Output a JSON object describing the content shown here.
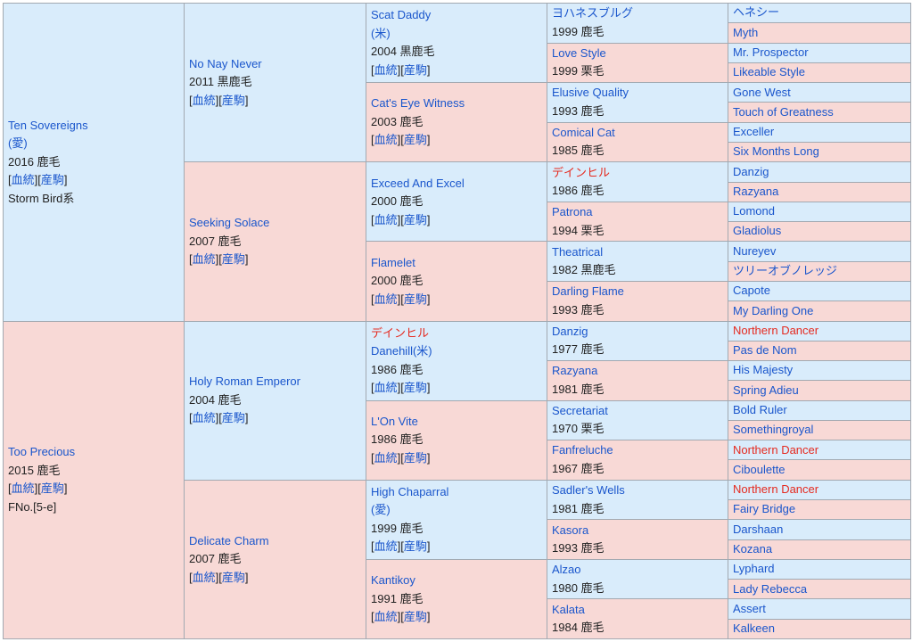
{
  "gen1": [
    {
      "lines": [
        {
          "t": "Ten Sovereigns",
          "c": "blue"
        },
        {
          "t": "(愛)",
          "c": "blue"
        },
        {
          "t": "2016 鹿毛",
          "c": "txt"
        },
        {
          "links": true
        },
        {
          "t": "Storm Bird系",
          "c": "txt"
        }
      ]
    },
    {
      "lines": [
        {
          "t": "Too Precious",
          "c": "blue"
        },
        {
          "t": "2015 鹿毛",
          "c": "txt"
        },
        {
          "links": true
        },
        {
          "t": "FNo.[5-e]",
          "c": "txt"
        }
      ]
    }
  ],
  "gen2": [
    {
      "lines": [
        {
          "t": "No Nay Never",
          "c": "blue"
        },
        {
          "t": "2011 黒鹿毛",
          "c": "txt"
        },
        {
          "links": true
        }
      ]
    },
    {
      "lines": [
        {
          "t": "Seeking Solace",
          "c": "blue"
        },
        {
          "t": "2007 鹿毛",
          "c": "txt"
        },
        {
          "links": true
        }
      ]
    },
    {
      "lines": [
        {
          "t": "Holy Roman Emperor",
          "c": "blue"
        },
        {
          "t": "2004 鹿毛",
          "c": "txt"
        },
        {
          "links": true
        }
      ]
    },
    {
      "lines": [
        {
          "t": "Delicate Charm",
          "c": "blue"
        },
        {
          "t": "2007 鹿毛",
          "c": "txt"
        },
        {
          "links": true
        }
      ]
    }
  ],
  "gen3": [
    {
      "lines": [
        {
          "t": "Scat Daddy",
          "c": "blue"
        },
        {
          "t": "(米)",
          "c": "blue"
        },
        {
          "t": "2004 黒鹿毛",
          "c": "txt"
        },
        {
          "links": true
        }
      ]
    },
    {
      "lines": [
        {
          "t": "Cat's Eye Witness",
          "c": "blue"
        },
        {
          "t": "2003 鹿毛",
          "c": "txt"
        },
        {
          "links": true
        }
      ]
    },
    {
      "lines": [
        {
          "t": "Exceed And Excel",
          "c": "blue"
        },
        {
          "t": "2000 鹿毛",
          "c": "txt"
        },
        {
          "links": true
        }
      ]
    },
    {
      "lines": [
        {
          "t": "Flamelet",
          "c": "blue"
        },
        {
          "t": "2000 鹿毛",
          "c": "txt"
        },
        {
          "links": true
        }
      ]
    },
    {
      "lines": [
        {
          "t": "デインヒル",
          "c": "red"
        },
        {
          "t": "Danehill(米)",
          "c": "blue"
        },
        {
          "t": "1986 鹿毛",
          "c": "txt"
        },
        {
          "links": true
        }
      ]
    },
    {
      "lines": [
        {
          "t": "L'On Vite",
          "c": "blue"
        },
        {
          "t": "1986 鹿毛",
          "c": "txt"
        },
        {
          "links": true
        }
      ]
    },
    {
      "lines": [
        {
          "t": "High Chaparral",
          "c": "blue"
        },
        {
          "t": "(愛)",
          "c": "blue"
        },
        {
          "t": "1999 鹿毛",
          "c": "txt"
        },
        {
          "links": true
        }
      ]
    },
    {
      "lines": [
        {
          "t": "Kantikoy",
          "c": "blue"
        },
        {
          "t": "1991 鹿毛",
          "c": "txt"
        },
        {
          "links": true
        }
      ]
    }
  ],
  "gen4": [
    {
      "lines": [
        {
          "t": "ヨハネスブルグ",
          "c": "blue"
        },
        {
          "t": "1999 鹿毛",
          "c": "txt"
        }
      ]
    },
    {
      "lines": [
        {
          "t": "Love Style",
          "c": "blue"
        },
        {
          "t": "1999 栗毛",
          "c": "txt"
        }
      ]
    },
    {
      "lines": [
        {
          "t": "Elusive Quality",
          "c": "blue"
        },
        {
          "t": "1993 鹿毛",
          "c": "txt"
        }
      ]
    },
    {
      "lines": [
        {
          "t": "Comical Cat",
          "c": "blue"
        },
        {
          "t": "1985 鹿毛",
          "c": "txt"
        }
      ]
    },
    {
      "lines": [
        {
          "t": "デインヒル",
          "c": "red"
        },
        {
          "t": "1986 鹿毛",
          "c": "txt"
        }
      ]
    },
    {
      "lines": [
        {
          "t": "Patrona",
          "c": "blue"
        },
        {
          "t": "1994 栗毛",
          "c": "txt"
        }
      ]
    },
    {
      "lines": [
        {
          "t": "Theatrical",
          "c": "blue"
        },
        {
          "t": "1982 黒鹿毛",
          "c": "txt"
        }
      ]
    },
    {
      "lines": [
        {
          "t": "Darling Flame",
          "c": "blue"
        },
        {
          "t": "1993 鹿毛",
          "c": "txt"
        }
      ]
    },
    {
      "lines": [
        {
          "t": "Danzig",
          "c": "blue"
        },
        {
          "t": "1977 鹿毛",
          "c": "txt"
        }
      ]
    },
    {
      "lines": [
        {
          "t": "Razyana",
          "c": "blue"
        },
        {
          "t": "1981 鹿毛",
          "c": "txt"
        }
      ]
    },
    {
      "lines": [
        {
          "t": "Secretariat",
          "c": "blue"
        },
        {
          "t": "1970 栗毛",
          "c": "txt"
        }
      ]
    },
    {
      "lines": [
        {
          "t": "Fanfreluche",
          "c": "blue"
        },
        {
          "t": "1967 鹿毛",
          "c": "txt"
        }
      ]
    },
    {
      "lines": [
        {
          "t": "Sadler's Wells",
          "c": "blue"
        },
        {
          "t": "1981 鹿毛",
          "c": "txt"
        }
      ]
    },
    {
      "lines": [
        {
          "t": "Kasora",
          "c": "blue"
        },
        {
          "t": "1993 鹿毛",
          "c": "txt"
        }
      ]
    },
    {
      "lines": [
        {
          "t": "Alzao",
          "c": "blue"
        },
        {
          "t": "1980 鹿毛",
          "c": "txt"
        }
      ]
    },
    {
      "lines": [
        {
          "t": "Kalata",
          "c": "blue"
        },
        {
          "t": "1984 鹿毛",
          "c": "txt"
        }
      ]
    }
  ],
  "gen5": [
    {
      "t": "ヘネシー",
      "c": "blue"
    },
    {
      "t": "Myth",
      "c": "blue"
    },
    {
      "t": "Mr. Prospector",
      "c": "blue"
    },
    {
      "t": "Likeable Style",
      "c": "blue"
    },
    {
      "t": "Gone West",
      "c": "blue"
    },
    {
      "t": "Touch of Greatness",
      "c": "blue"
    },
    {
      "t": "Exceller",
      "c": "blue"
    },
    {
      "t": "Six Months Long",
      "c": "blue"
    },
    {
      "t": "Danzig",
      "c": "blue"
    },
    {
      "t": "Razyana",
      "c": "blue"
    },
    {
      "t": "Lomond",
      "c": "blue"
    },
    {
      "t": "Gladiolus",
      "c": "blue"
    },
    {
      "t": "Nureyev",
      "c": "blue"
    },
    {
      "t": "ツリーオブノレッジ",
      "c": "blue"
    },
    {
      "t": "Capote",
      "c": "blue"
    },
    {
      "t": "My Darling One",
      "c": "blue"
    },
    {
      "t": "Northern Dancer",
      "c": "red"
    },
    {
      "t": "Pas de Nom",
      "c": "blue"
    },
    {
      "t": "His Majesty",
      "c": "blue"
    },
    {
      "t": "Spring Adieu",
      "c": "blue"
    },
    {
      "t": "Bold Ruler",
      "c": "blue"
    },
    {
      "t": "Somethingroyal",
      "c": "blue"
    },
    {
      "t": "Northern Dancer",
      "c": "red"
    },
    {
      "t": "Ciboulette",
      "c": "blue"
    },
    {
      "t": "Northern Dancer",
      "c": "red"
    },
    {
      "t": "Fairy Bridge",
      "c": "blue"
    },
    {
      "t": "Darshaan",
      "c": "blue"
    },
    {
      "t": "Kozana",
      "c": "blue"
    },
    {
      "t": "Lyphard",
      "c": "blue"
    },
    {
      "t": "Lady Rebecca",
      "c": "blue"
    },
    {
      "t": "Assert",
      "c": "blue"
    },
    {
      "t": "Kalkeen",
      "c": "blue"
    }
  ],
  "links": {
    "bloodline": "血統",
    "offspring": "産駒"
  },
  "colors": {
    "sire_bg": "#d9ecfb",
    "dam_bg": "#f8d9d6",
    "link": "#1a56cc",
    "highlight": "#e52a1f",
    "border": "#a2a9b1"
  }
}
